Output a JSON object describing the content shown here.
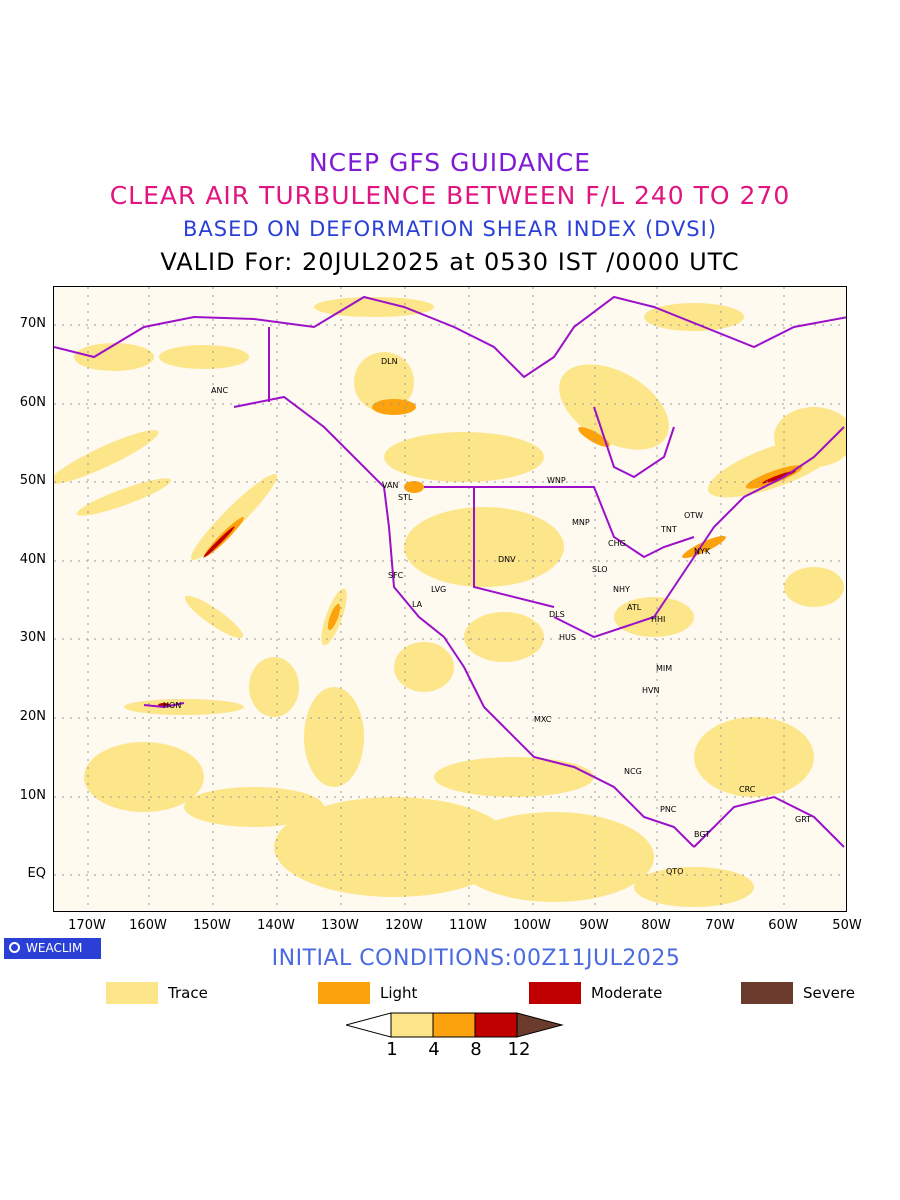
{
  "titles": {
    "line1": "NCEP GFS GUIDANCE",
    "line2": "CLEAR AIR TURBULENCE BETWEEN F/L 240 TO 270",
    "line3": "BASED ON DEFORMATION SHEAR INDEX (DVSI)",
    "line4": "VALID For: 20JUL2025 at 0530 IST /0000 UTC"
  },
  "colors": {
    "title1": "#7e1bd6",
    "title2": "#e0157f",
    "title3": "#2a3fd6",
    "coast": "#9b10c8",
    "trace": "#fde58a",
    "light": "#fca20c",
    "moderate": "#c00000",
    "severe": "#6b3b2e"
  },
  "axes": {
    "lat_labels": [
      "70N",
      "60N",
      "50N",
      "40N",
      "30N",
      "20N",
      "10N",
      "EQ"
    ],
    "lon_labels": [
      "170W",
      "160W",
      "150W",
      "140W",
      "130W",
      "120W",
      "110W",
      "100W",
      "90W",
      "80W",
      "70W",
      "60W",
      "50W"
    ]
  },
  "cities": [
    "DLN",
    "ANC",
    "WNP",
    "VAN",
    "STL",
    "MNP",
    "OTW",
    "TNT",
    "CHG",
    "NYK",
    "DNV",
    "SFC",
    "LVG",
    "SLO",
    "LA",
    "NHY",
    "ATL",
    "DLS",
    "HHI",
    "HUS",
    "MIM",
    "HON",
    "HVN",
    "MXC",
    "NCG",
    "CRC",
    "PNC",
    "GRT",
    "BGT",
    "QTO"
  ],
  "badge": {
    "label": "WEACLIM"
  },
  "initial_conditions": "INITIAL CONDITIONS:00Z11JUL2025",
  "legend": [
    {
      "label": "Trace",
      "color": "#fde58a"
    },
    {
      "label": "Light",
      "color": "#fca20c"
    },
    {
      "label": "Moderate",
      "color": "#c00000"
    },
    {
      "label": "Severe",
      "color": "#6b3b2e"
    }
  ],
  "colorbar": {
    "levels": [
      "1",
      "4",
      "8",
      "12"
    ],
    "colors": [
      "#ffffff",
      "#fde58a",
      "#fca20c",
      "#c00000",
      "#6b3b2e"
    ]
  }
}
